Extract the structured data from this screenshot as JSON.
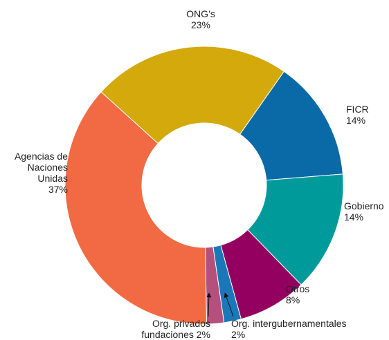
{
  "chart_data": {
    "type": "donut",
    "categories": [
      "FICR",
      "Gobierno",
      "Otros",
      "Org. intergubernamentales",
      "Org. privados fundaciones",
      "Agencias de Naciones Unidas",
      "ONG’s"
    ],
    "values": [
      14,
      14,
      8,
      2,
      2,
      37,
      23
    ],
    "value_labels": [
      "14%",
      "14%",
      "8%",
      "2%",
      "2%",
      "37%",
      "23%"
    ],
    "colors": [
      "#0a6aa8",
      "#009a9a",
      "#930060",
      "#1a78b8",
      "#b5507c",
      "#f26a43",
      "#d4a90c"
    ]
  }
}
